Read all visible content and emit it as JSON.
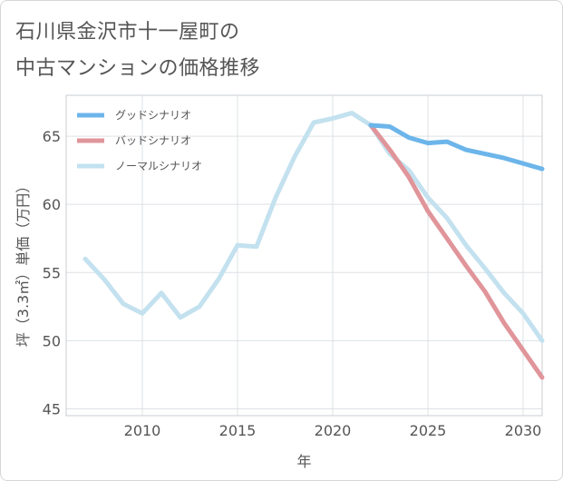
{
  "title_lines": [
    "石川県金沢市十一屋町の",
    "中古マンションの価格推移"
  ],
  "chart_data": {
    "type": "line",
    "title": "石川県金沢市十一屋町の中古マンションの価格推移",
    "xlabel": "年",
    "ylabel": "坪（3.3㎡）単価（万円）",
    "xlim": [
      2006,
      2031
    ],
    "ylim": [
      44.5,
      68
    ],
    "x_ticks": [
      2010,
      2015,
      2020,
      2025,
      2030
    ],
    "y_ticks": [
      45,
      50,
      55,
      60,
      65
    ],
    "grid": true,
    "legend_position": "top-left",
    "series": [
      {
        "name": "グッドシナリオ",
        "color": "#6cb5ea",
        "x": [
          2022,
          2023,
          2024,
          2025,
          2026,
          2027,
          2028,
          2029,
          2030,
          2031
        ],
        "y": [
          65.8,
          65.7,
          64.9,
          64.5,
          64.6,
          64.0,
          63.7,
          63.4,
          63.0,
          62.6
        ]
      },
      {
        "name": "バッドシナリオ",
        "color": "#e0959a",
        "x": [
          2022,
          2023,
          2024,
          2025,
          2026,
          2027,
          2028,
          2029,
          2030,
          2031
        ],
        "y": [
          65.8,
          64.0,
          62.0,
          59.5,
          57.5,
          55.5,
          53.6,
          51.3,
          49.3,
          47.3
        ]
      },
      {
        "name": "ノーマルシナリオ",
        "color": "#c3e1ef",
        "x": [
          2007,
          2008,
          2009,
          2010,
          2011,
          2012,
          2013,
          2014,
          2015,
          2016,
          2017,
          2018,
          2019,
          2020,
          2021,
          2022,
          2023,
          2024,
          2025,
          2026,
          2027,
          2028,
          2029,
          2030,
          2031
        ],
        "y": [
          56.0,
          54.5,
          52.7,
          52.0,
          53.5,
          51.7,
          52.5,
          54.5,
          57.0,
          56.9,
          60.5,
          63.5,
          66.0,
          66.3,
          66.7,
          65.8,
          63.7,
          62.5,
          60.5,
          59.0,
          57.0,
          55.3,
          53.5,
          52.0,
          50.0
        ]
      }
    ]
  }
}
